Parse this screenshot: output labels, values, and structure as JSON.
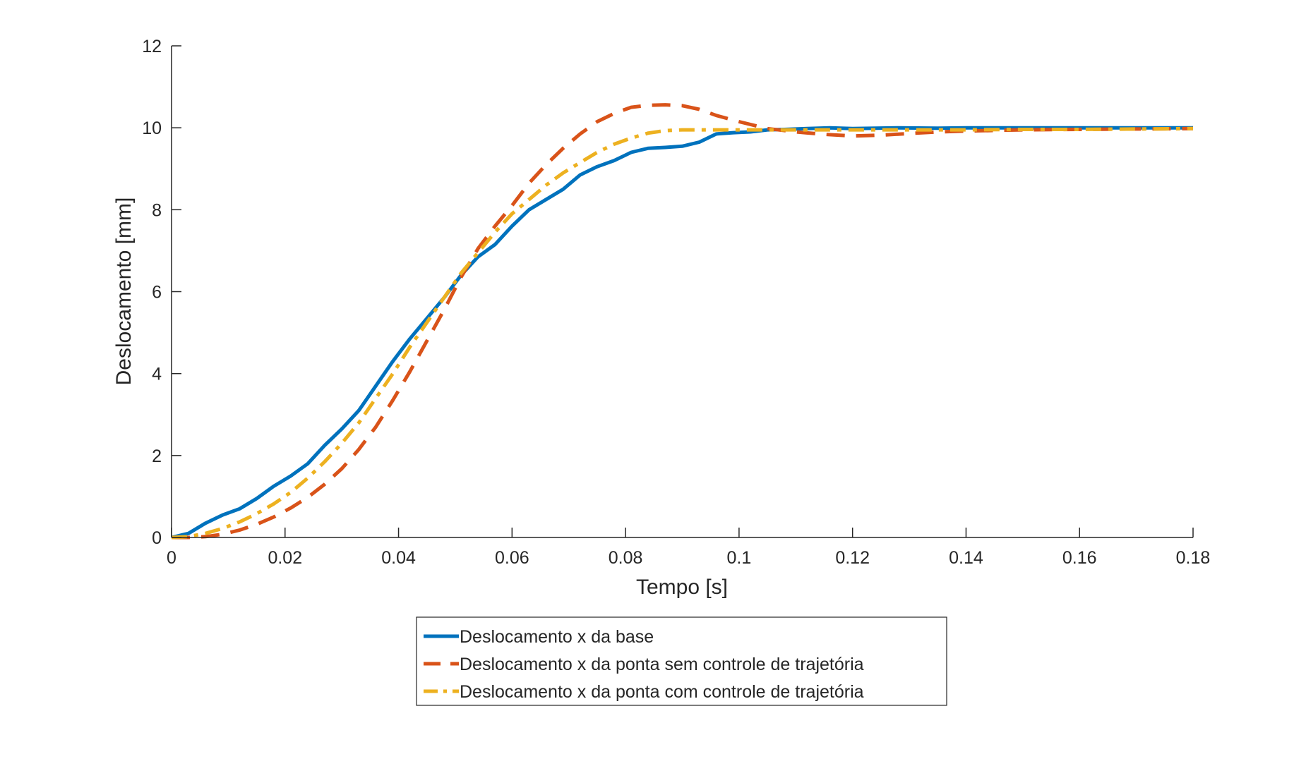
{
  "chart_data": {
    "type": "line",
    "title": "",
    "xlabel": "Tempo [s]",
    "ylabel": "Deslocamento [mm]",
    "xlim": [
      0,
      0.18
    ],
    "ylim": [
      0,
      12
    ],
    "xticks": [
      0,
      0.02,
      0.04,
      0.06,
      0.08,
      0.1,
      0.12,
      0.14,
      0.16,
      0.18
    ],
    "xtick_labels": [
      "0",
      "0.02",
      "0.04",
      "0.06",
      "0.08",
      "0.1",
      "0.12",
      "0.14",
      "0.16",
      "0.18"
    ],
    "yticks": [
      0,
      2,
      4,
      6,
      8,
      10,
      12
    ],
    "ytick_labels": [
      "0",
      "2",
      "4",
      "6",
      "8",
      "10",
      "12"
    ],
    "grid": false,
    "legend_position": "bottom-center",
    "series": [
      {
        "name": "Deslocamento x da base",
        "color": "#0072BD",
        "style": "solid",
        "x": [
          0,
          0.003,
          0.006,
          0.009,
          0.012,
          0.015,
          0.018,
          0.021,
          0.024,
          0.027,
          0.03,
          0.033,
          0.036,
          0.039,
          0.042,
          0.045,
          0.048,
          0.051,
          0.054,
          0.057,
          0.06,
          0.063,
          0.066,
          0.069,
          0.072,
          0.075,
          0.078,
          0.081,
          0.084,
          0.087,
          0.09,
          0.093,
          0.096,
          0.099,
          0.102,
          0.105,
          0.108,
          0.112,
          0.116,
          0.12,
          0.124,
          0.128,
          0.135,
          0.14,
          0.15,
          0.16,
          0.17,
          0.18
        ],
        "y": [
          0,
          0.1,
          0.35,
          0.55,
          0.7,
          0.95,
          1.25,
          1.5,
          1.8,
          2.25,
          2.65,
          3.1,
          3.7,
          4.3,
          4.85,
          5.35,
          5.85,
          6.4,
          6.85,
          7.15,
          7.6,
          8.0,
          8.25,
          8.5,
          8.85,
          9.05,
          9.2,
          9.4,
          9.5,
          9.52,
          9.55,
          9.65,
          9.85,
          9.88,
          9.9,
          9.95,
          9.96,
          9.98,
          10.0,
          9.98,
          9.99,
          10.0,
          9.99,
          10.0,
          10.0,
          10.0,
          10.0,
          10.0
        ]
      },
      {
        "name": "Deslocamento x da ponta sem controle de trajetória",
        "color": "#D95319",
        "style": "dashed",
        "x": [
          0,
          0.003,
          0.006,
          0.009,
          0.012,
          0.015,
          0.018,
          0.021,
          0.024,
          0.027,
          0.03,
          0.033,
          0.036,
          0.039,
          0.042,
          0.045,
          0.048,
          0.051,
          0.054,
          0.057,
          0.06,
          0.063,
          0.066,
          0.069,
          0.072,
          0.075,
          0.078,
          0.081,
          0.084,
          0.087,
          0.09,
          0.093,
          0.096,
          0.1,
          0.105,
          0.11,
          0.115,
          0.12,
          0.125,
          0.13,
          0.135,
          0.14,
          0.15,
          0.16,
          0.17,
          0.18
        ],
        "y": [
          0,
          0.0,
          0.02,
          0.08,
          0.18,
          0.32,
          0.5,
          0.72,
          0.98,
          1.3,
          1.68,
          2.15,
          2.7,
          3.35,
          4.05,
          4.8,
          5.55,
          6.35,
          7.05,
          7.6,
          8.1,
          8.65,
          9.1,
          9.5,
          9.85,
          10.15,
          10.35,
          10.5,
          10.55,
          10.56,
          10.54,
          10.45,
          10.3,
          10.15,
          9.98,
          9.9,
          9.84,
          9.8,
          9.82,
          9.86,
          9.9,
          9.92,
          9.95,
          9.96,
          9.97,
          9.98
        ]
      },
      {
        "name": "Deslocamento x da ponta com controle de trajetória",
        "color": "#EDB120",
        "style": "dashdot",
        "x": [
          0,
          0.003,
          0.006,
          0.009,
          0.012,
          0.015,
          0.018,
          0.021,
          0.024,
          0.027,
          0.03,
          0.033,
          0.036,
          0.039,
          0.042,
          0.045,
          0.048,
          0.051,
          0.054,
          0.057,
          0.06,
          0.063,
          0.066,
          0.069,
          0.072,
          0.075,
          0.078,
          0.081,
          0.084,
          0.087,
          0.09,
          0.095,
          0.1,
          0.105,
          0.11,
          0.12,
          0.13,
          0.14,
          0.15,
          0.16,
          0.17,
          0.18
        ],
        "y": [
          0,
          0.02,
          0.1,
          0.22,
          0.38,
          0.58,
          0.82,
          1.1,
          1.45,
          1.85,
          2.3,
          2.8,
          3.4,
          4.0,
          4.65,
          5.25,
          5.85,
          6.45,
          6.95,
          7.45,
          7.9,
          8.25,
          8.6,
          8.9,
          9.15,
          9.4,
          9.6,
          9.75,
          9.87,
          9.93,
          9.95,
          9.95,
          9.95,
          9.95,
          9.95,
          9.95,
          9.95,
          9.95,
          9.96,
          9.96,
          9.97,
          9.98
        ]
      }
    ]
  }
}
